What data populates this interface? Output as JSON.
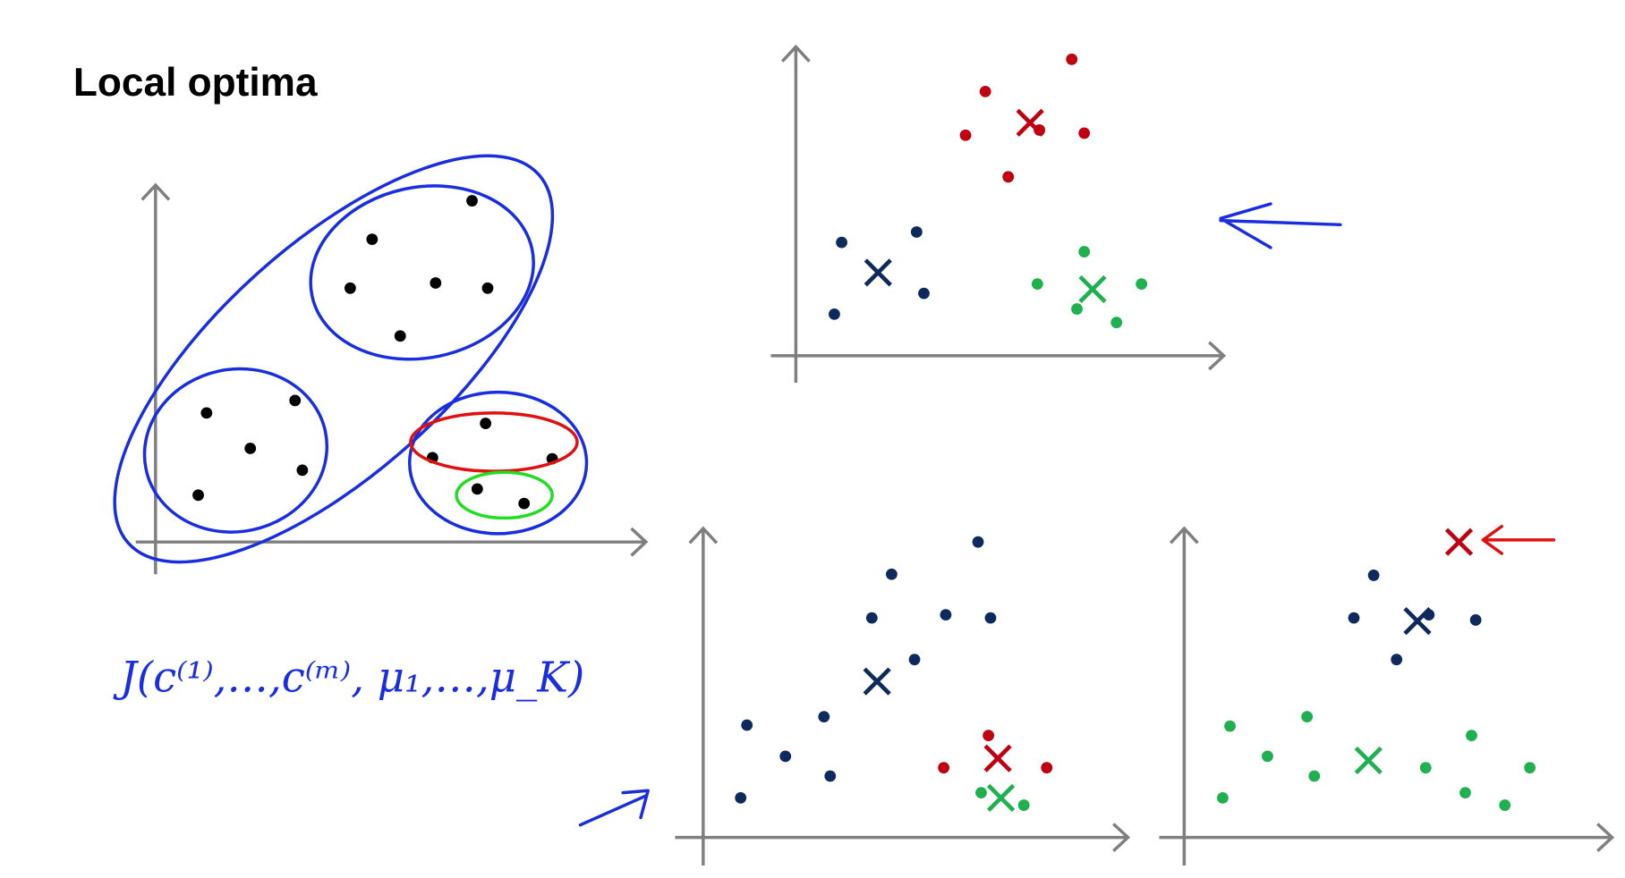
{
  "slide": {
    "title": "Local optima",
    "formula": "J(c⁽¹⁾,…,c⁽ᵐ⁾, μ₁,…,μ_K)"
  }
}
